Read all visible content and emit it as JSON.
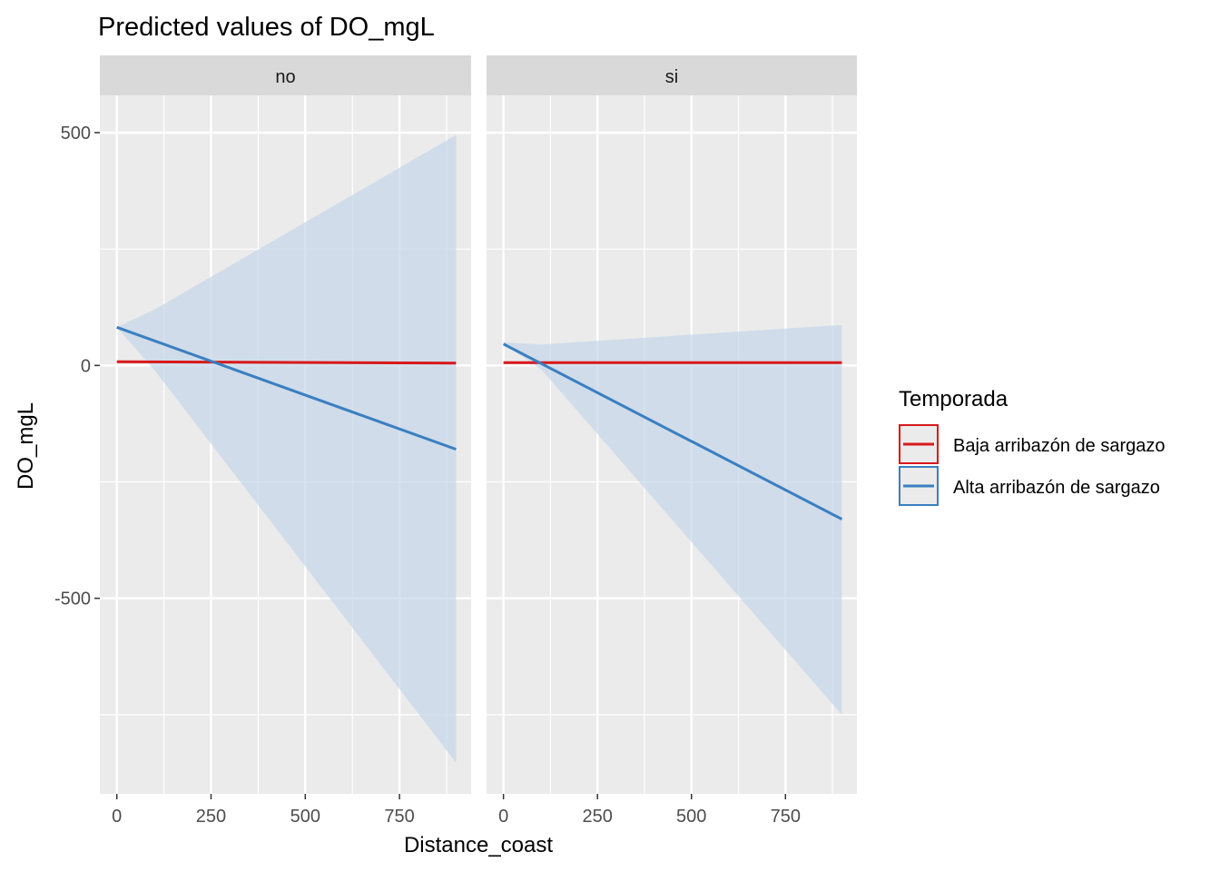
{
  "chart_data": {
    "type": "line",
    "title": "Predicted values of DO_mgL",
    "xlabel": "Distance_coast",
    "ylabel": "DO_mgL",
    "xlim": [
      -45,
      940
    ],
    "ylim": [
      -920,
      580
    ],
    "xticks": [
      0,
      250,
      500,
      750
    ],
    "xtick_labels": [
      "0",
      "250",
      "500",
      "750"
    ],
    "yticks": [
      500,
      0,
      -500
    ],
    "ytick_labels": [
      "500",
      "0",
      "-500"
    ],
    "grid": true,
    "legend": {
      "title": "Temporada",
      "position": "right",
      "entries": [
        "Baja arribazón de sargazo",
        "Alta arribazón de sargazo"
      ]
    },
    "colors": {
      "baja": "#d7191c",
      "alta": "#3a7fc1",
      "ribbon": "#c5d6e8",
      "panel_bg": "#ebebeb",
      "strip_bg": "#d9d9d9",
      "grid": "#ffffff"
    },
    "facets": [
      {
        "label": "no",
        "series": [
          {
            "name": "Baja arribazón de sargazo",
            "x": [
              0,
              900
            ],
            "y": [
              8,
              5
            ],
            "ribbon": {
              "x": [
                0,
                900
              ],
              "lower": [
                5,
                2
              ],
              "upper": [
                11,
                8
              ]
            }
          },
          {
            "name": "Alta arribazón de sargazo",
            "x": [
              0,
              900
            ],
            "y": [
              82,
              -180
            ],
            "ribbon": {
              "x": [
                0,
                100,
                900
              ],
              "lower": [
                82,
                -10,
                -853
              ],
              "upper": [
                82,
                120,
                495
              ]
            }
          }
        ]
      },
      {
        "label": "si",
        "series": [
          {
            "name": "Baja arribazón de sargazo",
            "x": [
              0,
              900
            ],
            "y": [
              6,
              6
            ],
            "ribbon": {
              "x": [
                0,
                900
              ],
              "lower": [
                3,
                3
              ],
              "upper": [
                9,
                9
              ]
            }
          },
          {
            "name": "Alta arribazón de sargazo",
            "x": [
              0,
              900
            ],
            "y": [
              46,
              -330
            ],
            "ribbon": {
              "x": [
                0,
                100,
                900
              ],
              "lower": [
                46,
                -8,
                -750
              ],
              "upper": [
                50,
                45,
                87
              ]
            }
          }
        ]
      }
    ]
  }
}
